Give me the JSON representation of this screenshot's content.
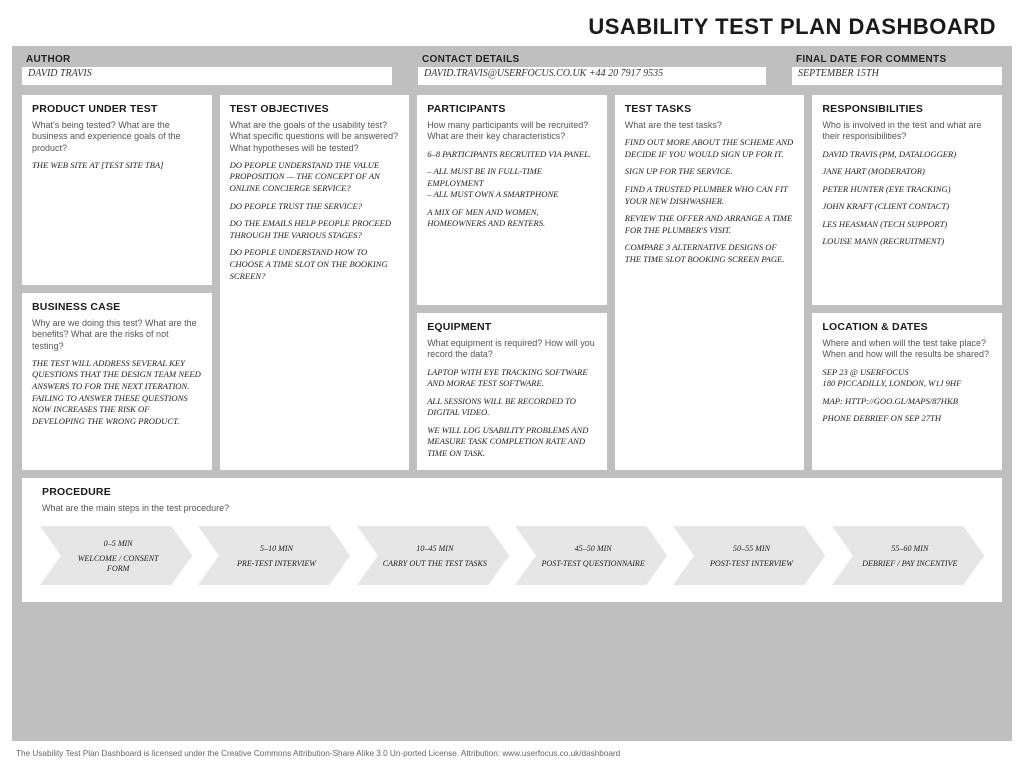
{
  "title": "USABILITY TEST PLAN DASHBOARD",
  "meta": {
    "author": {
      "label": "AUTHOR",
      "value": "DAVID TRAVIS"
    },
    "contact": {
      "label": "CONTACT DETAILS",
      "value": "DAVID.TRAVIS@USERFOCUS.CO.UK  +44 20 7917 9535"
    },
    "finaldate": {
      "label": "FINAL DATE FOR COMMENTS",
      "value": "SEPTEMBER 15TH"
    }
  },
  "colors": {
    "board_bg": "#bfbfbf",
    "card_bg": "#ffffff",
    "chevron_fill": "#e6e6e6",
    "text": "#222222",
    "subtext": "#555555"
  },
  "cards": {
    "product": {
      "title": "PRODUCT UNDER TEST",
      "q": "What's being tested? What are the business and experience goals of the product?",
      "body": [
        "The web site at [test site TBA]"
      ]
    },
    "business": {
      "title": "BUSINESS CASE",
      "q": "Why are we doing this test? What are the benefits? What are the risks of not testing?",
      "body": [
        "The test will address several key questions that the design team need answers to for the next iteration. Failing to answer these questions now increases the risk of developing the wrong product."
      ]
    },
    "objectives": {
      "title": "TEST OBJECTIVES",
      "q": "What are the goals of the usability test? What specific questions will be answered? What hypotheses will be tested?",
      "body": [
        "Do people understand the value proposition — the concept of an online concierge service?",
        "Do people trust the service?",
        "Do the emails help people proceed through the various stages?",
        "Do people understand how to choose a time slot on the booking screen?"
      ]
    },
    "participants": {
      "title": "PARTICIPANTS",
      "q": "How many participants will be recruited? What are their key characteristics?",
      "body": [
        "6–8 participants recruited via panel.",
        "– All must be in full-time employment\n– All must own a smartphone",
        "A mix of men and women, homeowners and renters."
      ]
    },
    "equipment": {
      "title": "EQUIPMENT",
      "q": "What equipment is required? How will you record the data?",
      "body": [
        "Laptop with eye tracking software and Morae test software.",
        "All sessions will be recorded to digital video.",
        "We will log usability problems and measure task completion rate and time on task."
      ]
    },
    "tasks": {
      "title": "TEST TASKS",
      "q": "What are the test tasks?",
      "body": [
        "Find out more about the scheme and decide if you would sign up for it.",
        "Sign up for the service.",
        "Find a trusted plumber who can fit your new dishwasher.",
        "Review the offer and arrange a time for the plumber's visit.",
        "Compare 3 alternative designs of the time slot booking screen page."
      ]
    },
    "resp": {
      "title": "RESPONSIBILITIES",
      "q": "Who is involved in the test and what are their responsibilities?",
      "body": [
        "David Travis (PM, datalogger)",
        "Jane Hart (Moderator)",
        "Peter Hunter (Eye tracking)",
        "John Kraft (Client contact)",
        "Les Heasman (Tech support)",
        "Louise Mann (Recruitment)"
      ]
    },
    "loc": {
      "title": "LOCATION & DATES",
      "q": "Where and when will the test take place? When and how will the results be shared?",
      "body": [
        "Sep 23 @ Userfocus\n180 Piccadilly, London, W1J 9HF",
        "Map: http://goo.gl/maps/87HkB",
        "Phone debrief on Sep 27th"
      ]
    }
  },
  "procedure": {
    "title": "PROCEDURE",
    "q": "What are the main steps in the test procedure?",
    "steps": [
      {
        "time": "0–5 MIN",
        "label": "WELCOME / CONSENT FORM"
      },
      {
        "time": "5–10 MIN",
        "label": "PRE-TEST INTERVIEW"
      },
      {
        "time": "10–45 MIN",
        "label": "CARRY OUT THE TEST TASKS"
      },
      {
        "time": "45–50 MIN",
        "label": "POST-TEST QUESTIONNAIRE"
      },
      {
        "time": "50–55 MIN",
        "label": "POST-TEST INTERVIEW"
      },
      {
        "time": "55–60 MIN",
        "label": "DEBRIEF / PAY INCENTIVE"
      }
    ]
  },
  "footer": "The Usability Test Plan Dashboard is licensed under the Creative Commons Attribution-Share Alike 3.0 Un-ported License. Attribution: www.userfocus.co.uk/dashboard"
}
